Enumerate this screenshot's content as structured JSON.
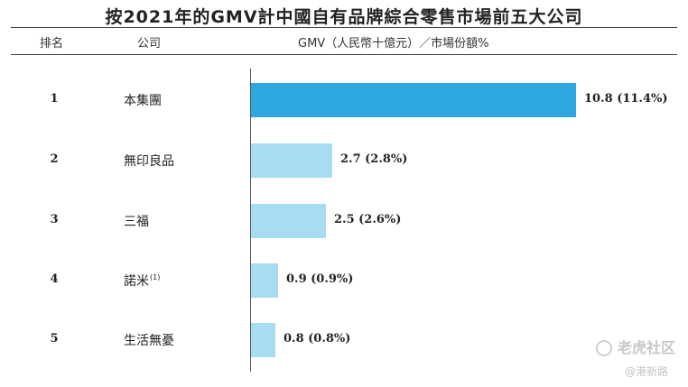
{
  "title": "按2021年的GMV計中國自有品牌綜合零售市場前五大公司",
  "headers": {
    "rank": "排名",
    "company": "公司",
    "gmv": "GMV（人民幣十億元）／市場份額%"
  },
  "watermark": {
    "primary": "老虎社区",
    "secondary": "@港新路"
  },
  "chart_data": {
    "type": "bar",
    "orientation": "horizontal",
    "title": "按2021年的GMV計中國自有品牌綜合零售市場前五大公司",
    "xlabel": "GMV（人民幣十億元）／市場份額%",
    "ylabel": "",
    "xlim": [
      0,
      10.8
    ],
    "grid": false,
    "categories": [
      "本集團",
      "無印良品",
      "三福",
      "諾米",
      "生活無憂"
    ],
    "ranks": [
      "1",
      "2",
      "3",
      "4",
      "5"
    ],
    "company_notes": [
      "",
      "",
      "",
      "(1)",
      ""
    ],
    "values": [
      10.8,
      2.7,
      2.5,
      0.9,
      0.8
    ],
    "shares": [
      11.4,
      2.8,
      2.6,
      0.9,
      0.8
    ],
    "value_labels": [
      "10.8 (11.4%)",
      "2.7 (2.8%)",
      "2.5 (2.6%)",
      "0.9 (0.9%)",
      "0.8 (0.8%)"
    ],
    "bar_colors": [
      "#2ea7e0",
      "#a7dcf1",
      "#a7dcf1",
      "#a7dcf1",
      "#a7dcf1"
    ]
  }
}
